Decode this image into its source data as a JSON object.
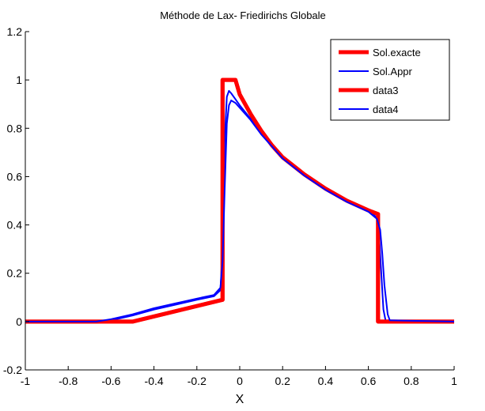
{
  "chart_data": {
    "type": "line",
    "title": "Méthode de Lax- Friedirichs Globale",
    "xlabel": "X",
    "ylabel": "",
    "xlim": [
      -1,
      1
    ],
    "ylim": [
      -0.2,
      1.2
    ],
    "xticks": [
      -1,
      -0.8,
      -0.6,
      -0.4,
      -0.2,
      0,
      0.2,
      0.4,
      0.6,
      0.8,
      1
    ],
    "yticks": [
      -0.2,
      0,
      0.2,
      0.4,
      0.6,
      0.8,
      1,
      1.2
    ],
    "xtick_labels": [
      "-1",
      "-0.8",
      "-0.6",
      "-0.4",
      "-0.2",
      "0",
      "0.2",
      "0.4",
      "0.6",
      "0.8",
      "1"
    ],
    "ytick_labels": [
      "-0.2",
      "0",
      "0.2",
      "0.4",
      "0.6",
      "0.8",
      "1",
      "1.2"
    ],
    "grid": false,
    "legend_position": "top-right",
    "series": [
      {
        "name": "Sol.exacte",
        "color": "#ff0000",
        "width": "thick",
        "x": [
          -1,
          -0.5,
          -0.08,
          -0.08,
          -0.04,
          -0.02,
          0.0,
          0.05,
          0.1,
          0.15,
          0.2,
          0.3,
          0.4,
          0.5,
          0.6,
          0.645,
          0.645,
          1
        ],
        "y": [
          0,
          0,
          0.09,
          1.0,
          1.0,
          1.0,
          0.94,
          0.86,
          0.79,
          0.73,
          0.68,
          0.61,
          0.55,
          0.5,
          0.46,
          0.445,
          0,
          0
        ]
      },
      {
        "name": "Sol.Appr",
        "color": "#0000ff",
        "width": "thin",
        "x": [
          -1,
          -0.65,
          -0.6,
          -0.5,
          -0.4,
          -0.3,
          -0.2,
          -0.12,
          -0.09,
          -0.08,
          -0.07,
          -0.06,
          -0.05,
          -0.04,
          -0.02,
          0.0,
          0.05,
          0.1,
          0.2,
          0.3,
          0.4,
          0.5,
          0.6,
          0.64,
          0.65,
          0.66,
          0.67,
          0.68,
          1
        ],
        "y": [
          0,
          0,
          0.005,
          0.025,
          0.05,
          0.07,
          0.09,
          0.105,
          0.13,
          0.3,
          0.75,
          0.93,
          0.955,
          0.945,
          0.92,
          0.895,
          0.84,
          0.78,
          0.68,
          0.61,
          0.55,
          0.5,
          0.46,
          0.43,
          0.36,
          0.2,
          0.05,
          0.005,
          0
        ]
      },
      {
        "name": "data3",
        "color": "#ff0000",
        "width": "thick",
        "x": [
          -1,
          -0.5,
          -0.08,
          -0.08,
          -0.04,
          -0.02,
          0.0,
          0.05,
          0.1,
          0.15,
          0.2,
          0.3,
          0.4,
          0.5,
          0.6,
          0.645,
          0.645,
          1
        ],
        "y": [
          0,
          0,
          0.09,
          1.0,
          1.0,
          1.0,
          0.94,
          0.86,
          0.79,
          0.73,
          0.68,
          0.61,
          0.55,
          0.5,
          0.46,
          0.445,
          0,
          0
        ]
      },
      {
        "name": "data4",
        "color": "#0000ff",
        "width": "thin",
        "x": [
          -1,
          -0.67,
          -0.6,
          -0.5,
          -0.4,
          -0.3,
          -0.2,
          -0.12,
          -0.09,
          -0.08,
          -0.07,
          -0.06,
          -0.05,
          -0.04,
          -0.02,
          0.0,
          0.05,
          0.1,
          0.2,
          0.3,
          0.4,
          0.5,
          0.6,
          0.64,
          0.655,
          0.665,
          0.675,
          0.69,
          0.7,
          1
        ],
        "y": [
          0,
          0,
          0.01,
          0.03,
          0.055,
          0.075,
          0.095,
          0.11,
          0.14,
          0.25,
          0.55,
          0.82,
          0.895,
          0.915,
          0.905,
          0.885,
          0.835,
          0.775,
          0.675,
          0.605,
          0.545,
          0.495,
          0.455,
          0.425,
          0.38,
          0.28,
          0.15,
          0.03,
          0.005,
          0
        ]
      }
    ]
  }
}
